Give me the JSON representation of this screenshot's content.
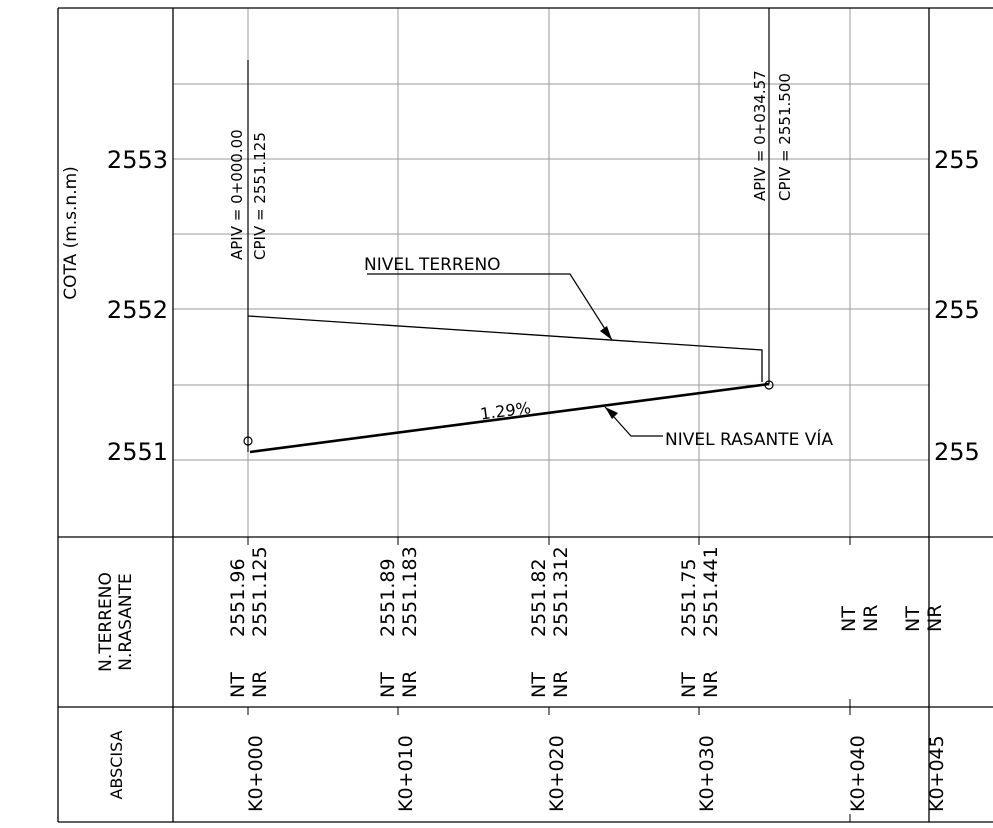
{
  "axis": {
    "ylabel": "COTA (m.s.n.m)",
    "left_ticks": [
      "2553",
      "2552",
      "2551"
    ],
    "right_ticks": [
      "255",
      "255",
      "255"
    ]
  },
  "piv": [
    {
      "apiv": "APIV = 0+000.00",
      "cpiv": "CPIV = 2551.125"
    },
    {
      "apiv": "APIV = 0+034.57",
      "cpiv": "CPIV = 2551.500"
    }
  ],
  "labels": {
    "nivel_terreno": "NIVEL TERRENO",
    "nivel_rasante": "NIVEL RASANTE VÍA",
    "slope": "1.29%"
  },
  "table": {
    "row1_header": [
      "N.TERRENO",
      "N.RASANTE"
    ],
    "row2_header": "ABSCISA",
    "stations": [
      {
        "abscisa": "K0+000",
        "nt_label": "NT",
        "nr_label": "NR",
        "nt": "2551.96",
        "nr": "2551.125"
      },
      {
        "abscisa": "K0+010",
        "nt_label": "NT",
        "nr_label": "NR",
        "nt": "2551.89",
        "nr": "2551.183"
      },
      {
        "abscisa": "K0+020",
        "nt_label": "NT",
        "nr_label": "NR",
        "nt": "2551.82",
        "nr": "2551.312"
      },
      {
        "abscisa": "K0+030",
        "nt_label": "NT",
        "nr_label": "NR",
        "nt": "2551.75",
        "nr": "2551.441"
      },
      {
        "abscisa": "K0+040",
        "nt_label": "NT",
        "nr_label": "NR",
        "nt": "",
        "nr": ""
      },
      {
        "abscisa": "K0+045",
        "nt_label": "NT",
        "nr_label": "NR",
        "nt": "",
        "nr": ""
      }
    ]
  }
}
